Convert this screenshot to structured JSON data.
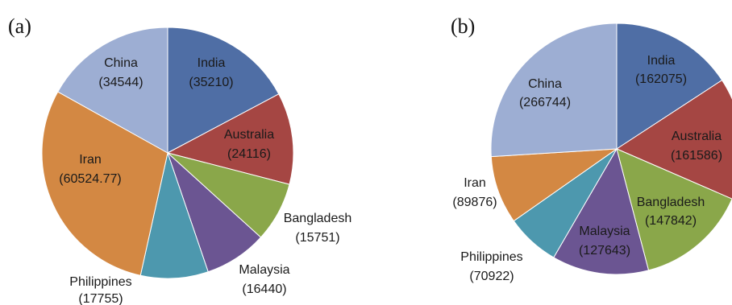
{
  "chart_data": [
    {
      "type": "pie",
      "panel_label": "(a)",
      "slices": [
        {
          "label": "India",
          "value": 35210,
          "value_text": "(35210)",
          "color": "#4f6ea5"
        },
        {
          "label": "Australia",
          "value": 24116,
          "value_text": "(24116)",
          "color": "#a54643"
        },
        {
          "label": "Bangladesh",
          "value": 15751,
          "value_text": "(15751)",
          "color": "#8aa74a"
        },
        {
          "label": "Malaysia",
          "value": 16440,
          "value_text": "(16440)",
          "color": "#6b5592"
        },
        {
          "label": "Philippines",
          "value": 17755,
          "value_text": "(17755)",
          "color": "#4d98ae"
        },
        {
          "label": "Iran",
          "value": 60524.77,
          "value_text": "(60524.77)",
          "color": "#d38843"
        },
        {
          "label": "China",
          "value": 34544,
          "value_text": "(34544)",
          "color": "#9daed3"
        }
      ]
    },
    {
      "type": "pie",
      "panel_label": "(b)",
      "slices": [
        {
          "label": "India",
          "value": 162075,
          "value_text": "(162075)",
          "color": "#4f6ea5"
        },
        {
          "label": "Australia",
          "value": 161586,
          "value_text": "(161586)",
          "color": "#a54643"
        },
        {
          "label": "Bangladesh",
          "value": 147842,
          "value_text": "(147842)",
          "color": "#8aa74a"
        },
        {
          "label": "Malaysia",
          "value": 127643,
          "value_text": "(127643)",
          "color": "#6b5592"
        },
        {
          "label": "Philippines",
          "value": 70922,
          "value_text": "(70922)",
          "color": "#4d98ae"
        },
        {
          "label": "Iran",
          "value": 89876,
          "value_text": "(89876)",
          "color": "#d38843"
        },
        {
          "label": "China",
          "value": 266744,
          "value_text": "(266744)",
          "color": "#9daed3"
        }
      ]
    }
  ]
}
